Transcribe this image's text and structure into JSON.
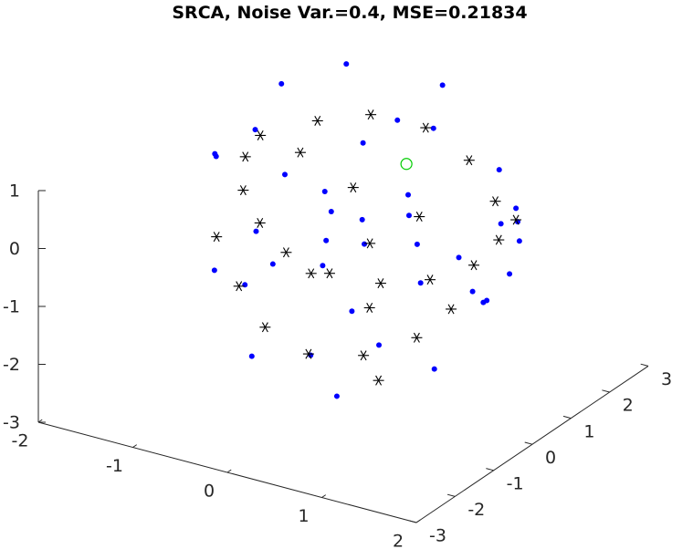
{
  "chart_data": {
    "type": "scatter",
    "title": "SRCA, Noise Var.=0.4, MSE=0.21834",
    "xlabel": "",
    "ylabel": "",
    "zlabel": "",
    "projection": "3d",
    "xlim": [
      -2,
      2
    ],
    "ylim": [
      -3,
      3
    ],
    "zlim": [
      -3,
      1
    ],
    "x_ticks": [
      "-2",
      "-1",
      "0",
      "1",
      "2"
    ],
    "y_ticks": [
      "-3",
      "-2",
      "-1",
      "0",
      "1",
      "2",
      "3"
    ],
    "z_ticks": [
      "-3",
      "-2",
      "-1",
      "0",
      "1"
    ],
    "grid": false,
    "legend": "none",
    "series": [
      {
        "marker": "dot",
        "color": "#0000ff",
        "points": [
          [
            -1.1,
            -0.6,
            0.9
          ],
          [
            -0.9,
            0.6,
            1.7
          ],
          [
            -0.5,
            1.3,
            1.9
          ],
          [
            0.6,
            1.1,
            2.1
          ],
          [
            -1.3,
            0.9,
            0.6
          ],
          [
            0.2,
            -0.8,
            0.6
          ],
          [
            0.9,
            -0.5,
            0.7
          ],
          [
            1.2,
            1.1,
            0.9
          ],
          [
            1.5,
            0.8,
            0.5
          ],
          [
            1.7,
            0.4,
            0.2
          ],
          [
            1.8,
            -0.1,
            -0.1
          ],
          [
            1.6,
            0.6,
            0.4
          ],
          [
            -1.2,
            -0.4,
            -1.2
          ],
          [
            -1.0,
            -0.1,
            -1.5
          ],
          [
            -0.6,
            -0.9,
            -2.2
          ],
          [
            -0.1,
            -0.6,
            -2.1
          ],
          [
            0.3,
            -0.9,
            -2.5
          ],
          [
            0.8,
            0.4,
            -2.4
          ],
          [
            0.5,
            -0.3,
            -1.8
          ],
          [
            -0.3,
            0.2,
            -1.0
          ],
          [
            0.1,
            0.3,
            -0.5
          ],
          [
            -0.4,
            0.5,
            0.1
          ],
          [
            -0.7,
            0.2,
            0.4
          ],
          [
            0.4,
            0.7,
            0.3
          ],
          [
            0.7,
            0.2,
            -0.2
          ],
          [
            0.9,
            -0.2,
            -0.6
          ],
          [
            1.1,
            0.3,
            -0.3
          ],
          [
            1.3,
            0.9,
            0.1
          ],
          [
            -0.2,
            1.0,
            0.8
          ],
          [
            0.0,
            1.4,
            1.1
          ],
          [
            0.3,
            1.6,
            1.0
          ],
          [
            0.5,
            -1.0,
            -0.9
          ],
          [
            -0.8,
            -0.3,
            -0.4
          ],
          [
            -0.5,
            -0.6,
            -0.7
          ],
          [
            -0.1,
            -0.2,
            -0.3
          ],
          [
            0.2,
            0.0,
            0.1
          ],
          [
            1.0,
            0.9,
            -1.2
          ],
          [
            1.4,
            0.2,
            -0.9
          ],
          [
            1.6,
            -0.2,
            -0.6
          ],
          [
            -1.4,
            0.1,
            0.5
          ]
        ]
      },
      {
        "marker": "asterisk",
        "color": "#000000",
        "points": [
          [
            -1.0,
            0.3,
            0.9
          ],
          [
            -0.6,
            0.8,
            1.1
          ],
          [
            -0.2,
            1.2,
            1.2
          ],
          [
            0.3,
            1.4,
            1.1
          ],
          [
            0.8,
            1.3,
            0.8
          ],
          [
            1.2,
            1.0,
            0.4
          ],
          [
            1.4,
            0.6,
            0.0
          ],
          [
            1.3,
            0.2,
            -0.3
          ],
          [
            1.0,
            -0.2,
            -0.5
          ],
          [
            0.6,
            -0.5,
            -0.6
          ],
          [
            0.1,
            -0.6,
            -0.6
          ],
          [
            -0.4,
            -0.5,
            -0.5
          ],
          [
            -0.8,
            -0.2,
            -0.3
          ],
          [
            -1.1,
            0.1,
            0.0
          ],
          [
            -1.2,
            0.4,
            0.4
          ],
          [
            -0.9,
            -0.5,
            -1.3
          ],
          [
            -0.5,
            -0.8,
            -1.7
          ],
          [
            0.0,
            -0.9,
            -1.9
          ],
          [
            0.5,
            -0.7,
            -1.8
          ],
          [
            0.9,
            -0.3,
            -1.5
          ],
          [
            1.1,
            0.1,
            -1.1
          ],
          [
            -0.3,
            -0.1,
            -1.0
          ],
          [
            0.2,
            0.2,
            -0.4
          ],
          [
            0.6,
            0.5,
            0.1
          ],
          [
            -0.7,
            0.6,
            0.6
          ],
          [
            0.4,
            -0.3,
            -1.2
          ],
          [
            -0.1,
            0.5,
            0.3
          ],
          [
            1.5,
            0.8,
            0.3
          ],
          [
            -1.3,
            -0.1,
            -0.8
          ],
          [
            0.7,
            -0.8,
            -2.1
          ]
        ]
      },
      {
        "marker": "circle",
        "color": "#00cc00",
        "points": [
          [
            0.3,
            0.9,
            0.7
          ]
        ]
      }
    ]
  }
}
